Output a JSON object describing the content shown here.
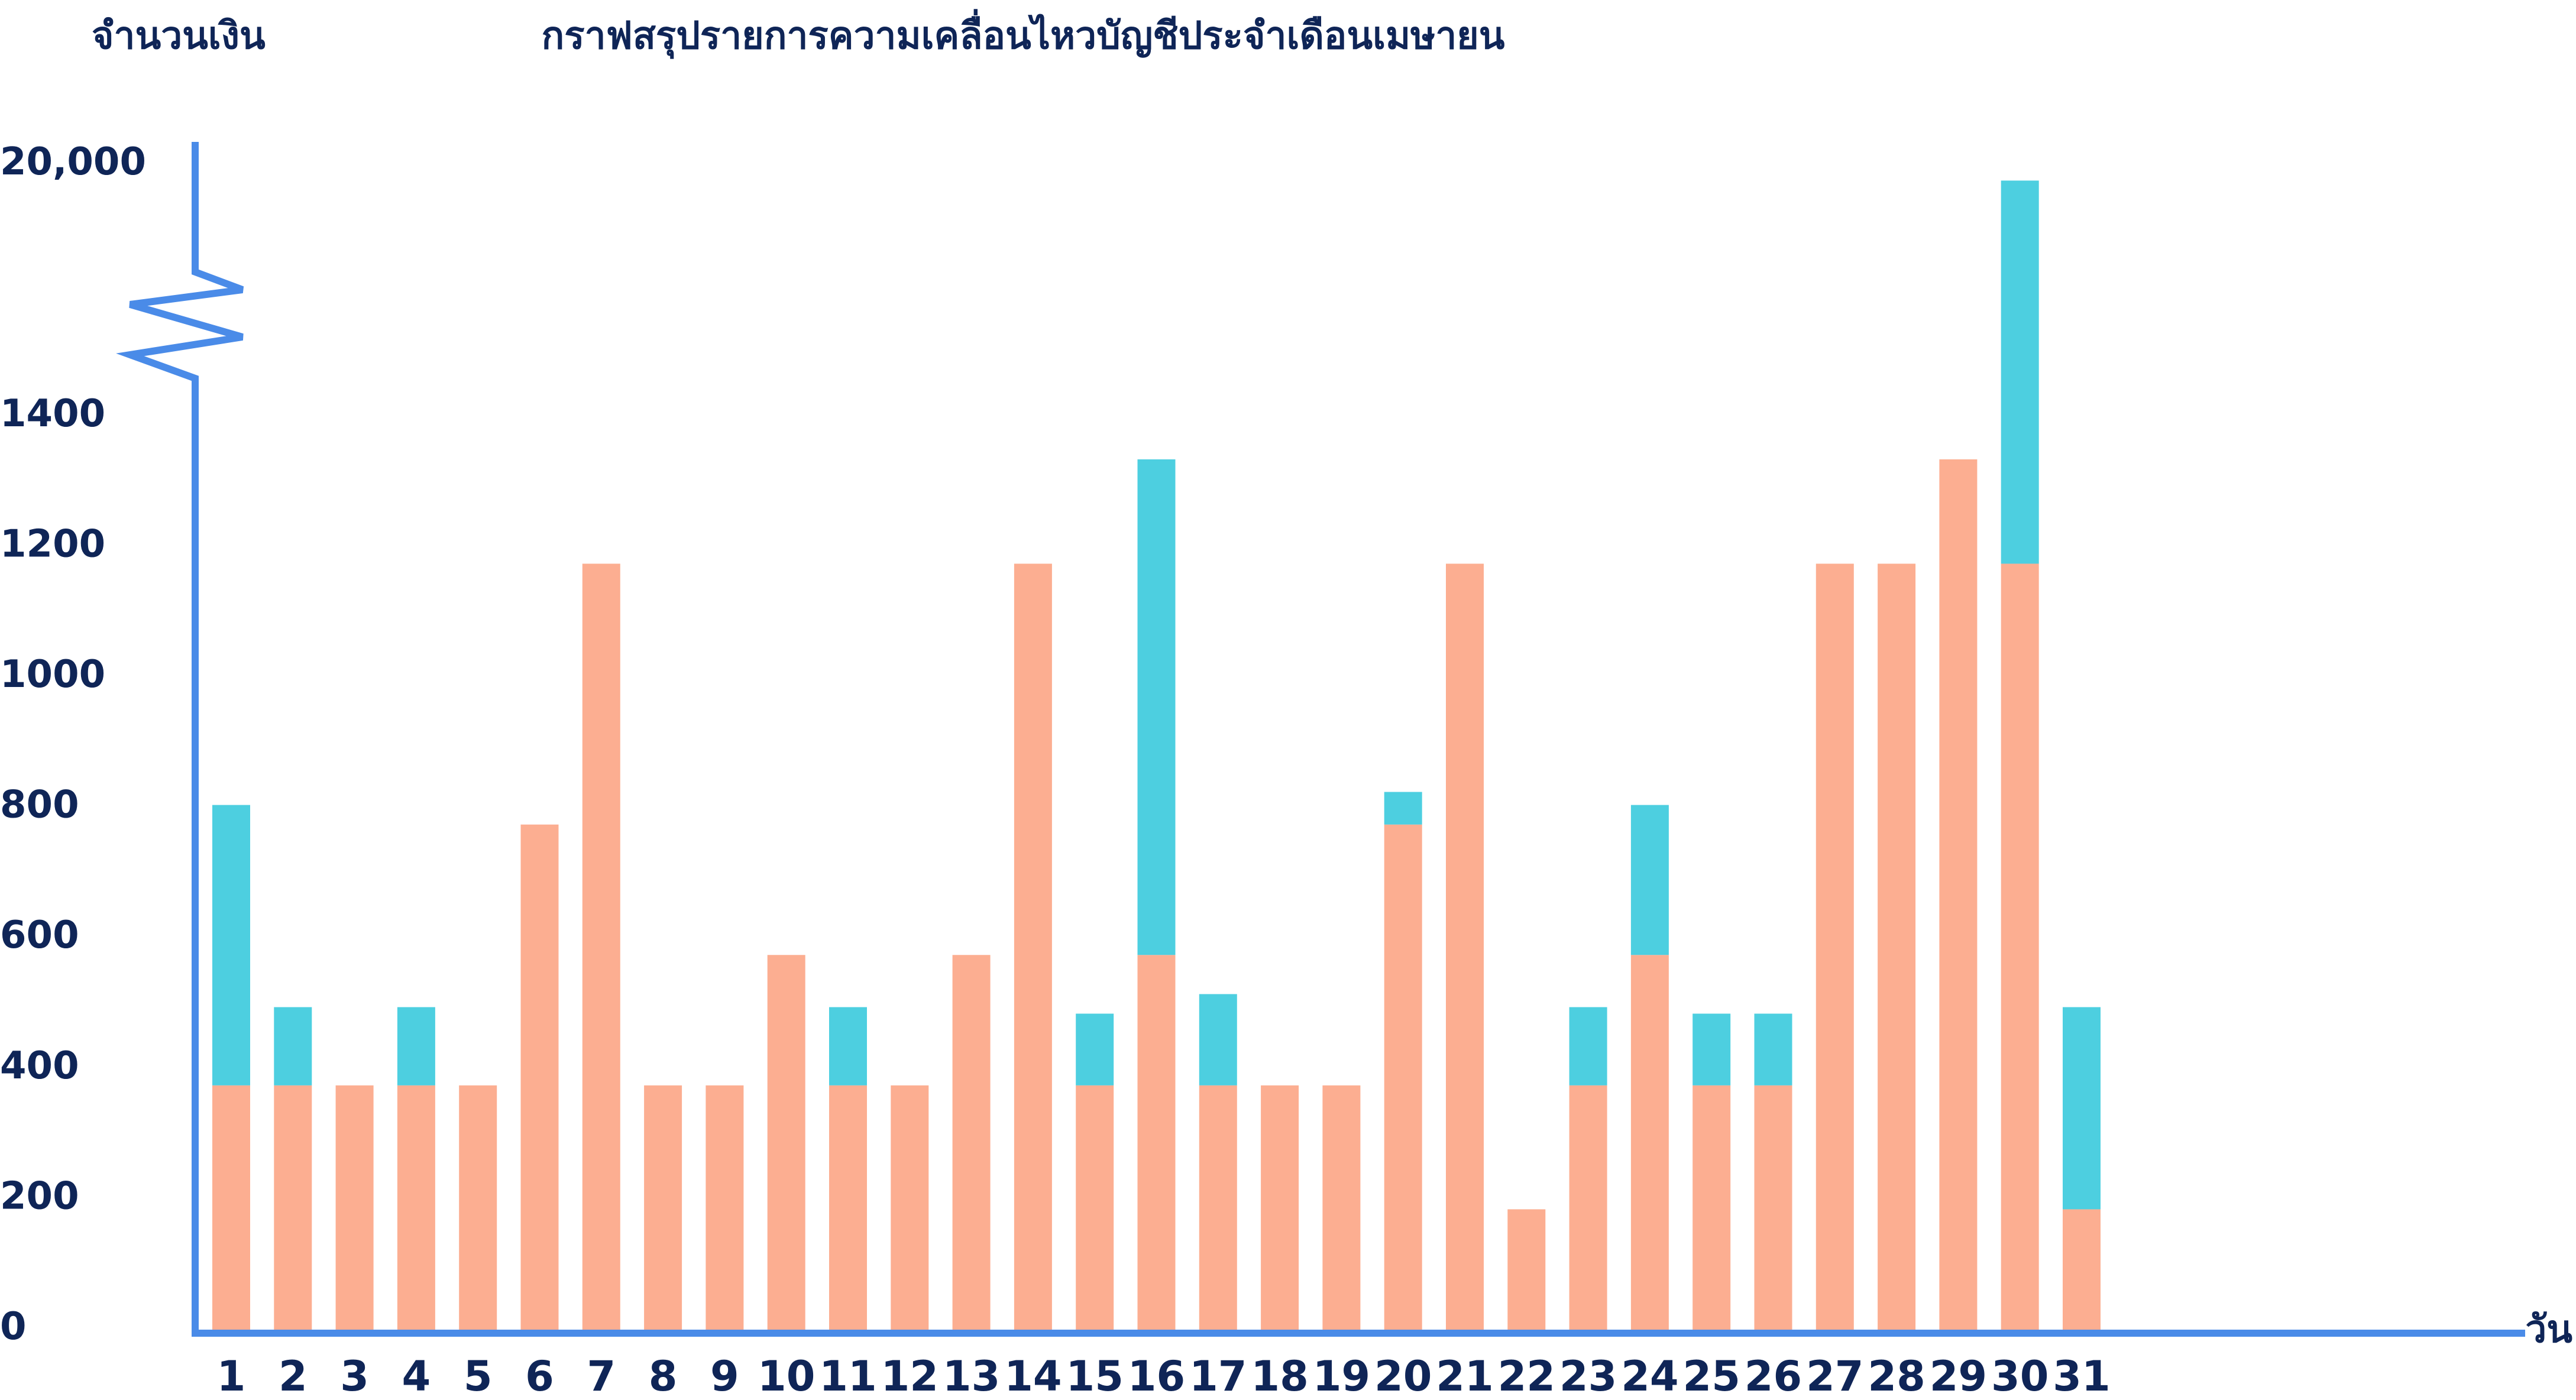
{
  "chart_data": {
    "type": "bar",
    "stacked": true,
    "title": "กราฟสรุปรายการความเคลื่อนไหวบัญชีประจำเดือนเมษายน",
    "ylabel": "จำนวนเงิน",
    "xlabel": "วัน",
    "ylim": [
      0,
      1400
    ],
    "yticks": [
      "0",
      "200",
      "400",
      "600",
      "800",
      "1000",
      "1200",
      "1400"
    ],
    "axis_break": true,
    "ytop_label": "20,000",
    "ytop_value": 20000,
    "categories": [
      "1",
      "2",
      "3",
      "4",
      "5",
      "6",
      "7",
      "8",
      "9",
      "10",
      "11",
      "12",
      "13",
      "14",
      "15",
      "16",
      "17",
      "18",
      "19",
      "20",
      "21",
      "22",
      "23",
      "24",
      "25",
      "26",
      "27",
      "28",
      "29",
      "30",
      "31"
    ],
    "series": [
      {
        "values": [
          380,
          380,
          380,
          380,
          380,
          780,
          1180,
          380,
          380,
          580,
          380,
          380,
          580,
          1180,
          380,
          580,
          380,
          380,
          380,
          780,
          1180,
          190,
          380,
          580,
          380,
          380,
          1180,
          1180,
          1340,
          1180,
          190
        ]
      },
      {
        "values": [
          430,
          120,
          0,
          120,
          0,
          0,
          0,
          0,
          0,
          0,
          120,
          0,
          0,
          0,
          110,
          760,
          140,
          0,
          0,
          50,
          0,
          0,
          120,
          230,
          110,
          110,
          0,
          0,
          0,
          18800,
          310
        ]
      }
    ],
    "colors": {
      "base": "#fcae91",
      "top": "#4dcfe0",
      "axis": "#4a8be8",
      "text": "#0f2557"
    },
    "grid": false,
    "legend": "none"
  }
}
